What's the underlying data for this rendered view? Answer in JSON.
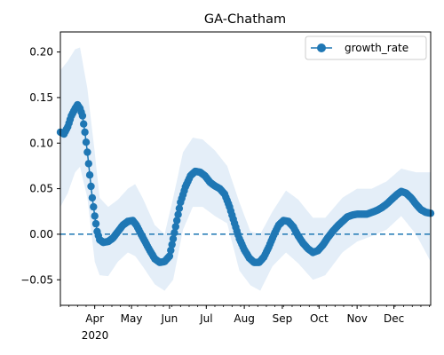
{
  "chart_data": {
    "type": "line",
    "title": "GA-Chatham",
    "xlabel": "",
    "ylabel": "",
    "x_start": "2020-03-04",
    "x_end": "2020-12-31",
    "xlim": [
      "2020-03-04",
      "2020-12-31"
    ],
    "ylim": [
      -0.078,
      0.222
    ],
    "y_ticks": [
      -0.05,
      0.0,
      0.05,
      0.1,
      0.15,
      0.2
    ],
    "y_tick_labels": [
      "−0.05",
      "0.00",
      "0.05",
      "0.10",
      "0.15",
      "0.20"
    ],
    "x_ticks": [
      "2020-04-01",
      "2020-05-01",
      "2020-06-01",
      "2020-07-01",
      "2020-08-01",
      "2020-09-01",
      "2020-10-01",
      "2020-11-01",
      "2020-12-01"
    ],
    "x_tick_labels": [
      "Apr",
      "May",
      "Jun",
      "Jul",
      "Aug",
      "Sep",
      "Oct",
      "Nov",
      "Dec"
    ],
    "x_year_label": "2020",
    "legend_position": "top-right",
    "colors": {
      "series": "#1f77b4",
      "band": "#dbe8f5",
      "reference": "#1f77b4"
    },
    "series": [
      {
        "name": "growth_rate",
        "marker": "circle",
        "points": [
          [
            "2020-03-04",
            0.112
          ],
          [
            "2020-03-07",
            0.11
          ],
          [
            "2020-03-10",
            0.118
          ],
          [
            "2020-03-13",
            0.13
          ],
          [
            "2020-03-16",
            0.138
          ],
          [
            "2020-03-18",
            0.142
          ],
          [
            "2020-03-20",
            0.138
          ],
          [
            "2020-03-22",
            0.13
          ],
          [
            "2020-03-24",
            0.112
          ],
          [
            "2020-03-26",
            0.09
          ],
          [
            "2020-03-28",
            0.065
          ],
          [
            "2020-03-30",
            0.04
          ],
          [
            "2020-04-01",
            0.02
          ],
          [
            "2020-04-03",
            0.003
          ],
          [
            "2020-04-05",
            -0.006
          ],
          [
            "2020-04-08",
            -0.009
          ],
          [
            "2020-04-12",
            -0.008
          ],
          [
            "2020-04-16",
            -0.004
          ],
          [
            "2020-04-20",
            0.003
          ],
          [
            "2020-04-24",
            0.01
          ],
          [
            "2020-04-28",
            0.014
          ],
          [
            "2020-05-02",
            0.015
          ],
          [
            "2020-05-05",
            0.01
          ],
          [
            "2020-05-08",
            0.002
          ],
          [
            "2020-05-12",
            -0.008
          ],
          [
            "2020-05-16",
            -0.018
          ],
          [
            "2020-05-20",
            -0.027
          ],
          [
            "2020-05-24",
            -0.031
          ],
          [
            "2020-05-28",
            -0.03
          ],
          [
            "2020-06-01",
            -0.024
          ],
          [
            "2020-06-04",
            -0.005
          ],
          [
            "2020-06-07",
            0.015
          ],
          [
            "2020-06-10",
            0.035
          ],
          [
            "2020-06-14",
            0.052
          ],
          [
            "2020-06-18",
            0.064
          ],
          [
            "2020-06-22",
            0.069
          ],
          [
            "2020-06-26",
            0.068
          ],
          [
            "2020-06-30",
            0.064
          ],
          [
            "2020-07-04",
            0.057
          ],
          [
            "2020-07-08",
            0.053
          ],
          [
            "2020-07-12",
            0.05
          ],
          [
            "2020-07-16",
            0.044
          ],
          [
            "2020-07-20",
            0.03
          ],
          [
            "2020-07-24",
            0.012
          ],
          [
            "2020-07-28",
            -0.005
          ],
          [
            "2020-08-01",
            -0.017
          ],
          [
            "2020-08-05",
            -0.026
          ],
          [
            "2020-08-09",
            -0.031
          ],
          [
            "2020-08-13",
            -0.031
          ],
          [
            "2020-08-17",
            -0.025
          ],
          [
            "2020-08-21",
            -0.014
          ],
          [
            "2020-08-25",
            -0.001
          ],
          [
            "2020-08-29",
            0.01
          ],
          [
            "2020-09-02",
            0.015
          ],
          [
            "2020-09-06",
            0.014
          ],
          [
            "2020-09-10",
            0.008
          ],
          [
            "2020-09-14",
            -0.002
          ],
          [
            "2020-09-18",
            -0.01
          ],
          [
            "2020-09-22",
            -0.016
          ],
          [
            "2020-09-26",
            -0.02
          ],
          [
            "2020-09-30",
            -0.018
          ],
          [
            "2020-10-04",
            -0.012
          ],
          [
            "2020-10-08",
            -0.004
          ],
          [
            "2020-10-12",
            0.003
          ],
          [
            "2020-10-16",
            0.009
          ],
          [
            "2020-10-20",
            0.014
          ],
          [
            "2020-10-24",
            0.019
          ],
          [
            "2020-10-28",
            0.021
          ],
          [
            "2020-11-01",
            0.022
          ],
          [
            "2020-11-05",
            0.022
          ],
          [
            "2020-11-09",
            0.022
          ],
          [
            "2020-11-13",
            0.024
          ],
          [
            "2020-11-17",
            0.026
          ],
          [
            "2020-11-21",
            0.029
          ],
          [
            "2020-11-25",
            0.033
          ],
          [
            "2020-11-29",
            0.038
          ],
          [
            "2020-12-03",
            0.043
          ],
          [
            "2020-12-07",
            0.047
          ],
          [
            "2020-12-11",
            0.045
          ],
          [
            "2020-12-15",
            0.04
          ],
          [
            "2020-12-19",
            0.033
          ],
          [
            "2020-12-23",
            0.027
          ],
          [
            "2020-12-27",
            0.024
          ],
          [
            "2020-12-31",
            0.023
          ]
        ],
        "band_upper": [
          [
            "2020-03-04",
            0.18
          ],
          [
            "2020-03-10",
            0.19
          ],
          [
            "2020-03-16",
            0.203
          ],
          [
            "2020-03-20",
            0.205
          ],
          [
            "2020-03-26",
            0.16
          ],
          [
            "2020-04-01",
            0.09
          ],
          [
            "2020-04-05",
            0.04
          ],
          [
            "2020-04-12",
            0.03
          ],
          [
            "2020-04-20",
            0.038
          ],
          [
            "2020-04-28",
            0.05
          ],
          [
            "2020-05-04",
            0.055
          ],
          [
            "2020-05-10",
            0.04
          ],
          [
            "2020-05-20",
            0.01
          ],
          [
            "2020-05-28",
            0.0
          ],
          [
            "2020-06-04",
            0.04
          ],
          [
            "2020-06-12",
            0.09
          ],
          [
            "2020-06-20",
            0.106
          ],
          [
            "2020-06-28",
            0.104
          ],
          [
            "2020-07-08",
            0.092
          ],
          [
            "2020-07-18",
            0.075
          ],
          [
            "2020-07-28",
            0.035
          ],
          [
            "2020-08-06",
            0.003
          ],
          [
            "2020-08-14",
            0.0
          ],
          [
            "2020-08-24",
            0.025
          ],
          [
            "2020-09-04",
            0.048
          ],
          [
            "2020-09-14",
            0.038
          ],
          [
            "2020-09-26",
            0.018
          ],
          [
            "2020-10-06",
            0.018
          ],
          [
            "2020-10-20",
            0.04
          ],
          [
            "2020-11-01",
            0.05
          ],
          [
            "2020-11-13",
            0.05
          ],
          [
            "2020-11-25",
            0.058
          ],
          [
            "2020-12-07",
            0.072
          ],
          [
            "2020-12-19",
            0.068
          ],
          [
            "2020-12-31",
            0.068
          ]
        ],
        "band_lower": [
          [
            "2020-03-04",
            0.03
          ],
          [
            "2020-03-10",
            0.045
          ],
          [
            "2020-03-16",
            0.068
          ],
          [
            "2020-03-20",
            0.074
          ],
          [
            "2020-03-26",
            0.04
          ],
          [
            "2020-04-01",
            -0.03
          ],
          [
            "2020-04-05",
            -0.045
          ],
          [
            "2020-04-12",
            -0.046
          ],
          [
            "2020-04-20",
            -0.03
          ],
          [
            "2020-04-28",
            -0.02
          ],
          [
            "2020-05-04",
            -0.024
          ],
          [
            "2020-05-10",
            -0.035
          ],
          [
            "2020-05-20",
            -0.055
          ],
          [
            "2020-05-28",
            -0.062
          ],
          [
            "2020-06-04",
            -0.05
          ],
          [
            "2020-06-12",
            0.005
          ],
          [
            "2020-06-20",
            0.03
          ],
          [
            "2020-06-28",
            0.03
          ],
          [
            "2020-07-08",
            0.02
          ],
          [
            "2020-07-18",
            0.012
          ],
          [
            "2020-07-28",
            -0.04
          ],
          [
            "2020-08-06",
            -0.056
          ],
          [
            "2020-08-14",
            -0.062
          ],
          [
            "2020-08-24",
            -0.035
          ],
          [
            "2020-09-04",
            -0.02
          ],
          [
            "2020-09-14",
            -0.032
          ],
          [
            "2020-09-26",
            -0.05
          ],
          [
            "2020-10-06",
            -0.045
          ],
          [
            "2020-10-20",
            -0.02
          ],
          [
            "2020-11-01",
            -0.008
          ],
          [
            "2020-11-13",
            -0.002
          ],
          [
            "2020-11-25",
            0.005
          ],
          [
            "2020-12-07",
            0.02
          ],
          [
            "2020-12-19",
            0.0
          ],
          [
            "2020-12-31",
            -0.03
          ]
        ]
      }
    ],
    "reference_lines": [
      {
        "axis": "y",
        "value": 0.0,
        "style": "dashed"
      }
    ]
  }
}
